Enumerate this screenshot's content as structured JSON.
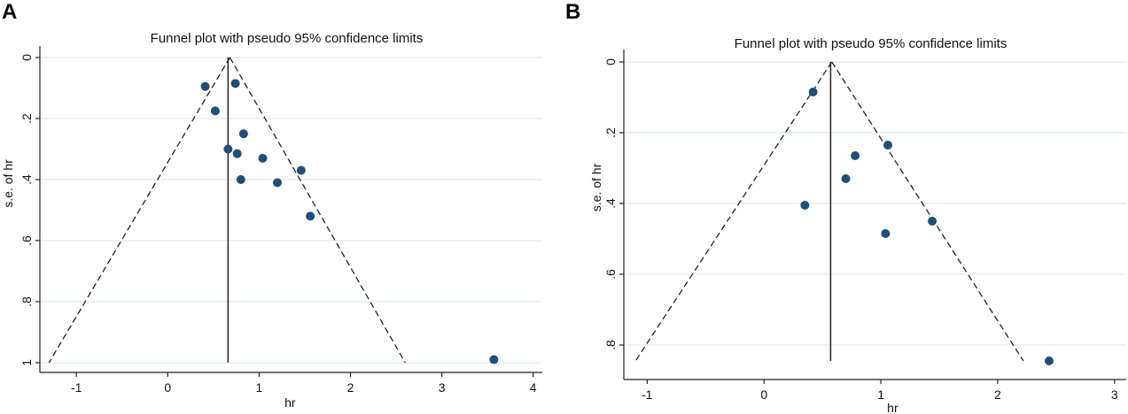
{
  "chart_data": [
    {
      "panel_label": "A",
      "type": "scatter",
      "title": "Funnel plot with pseudo 95% confidence limits",
      "xlabel": "hr",
      "ylabel": "s.e. of hr",
      "xlim": [
        -1.4,
        4.1
      ],
      "ylim": [
        1.0,
        0.0
      ],
      "x_ticks": [
        -1,
        0,
        1,
        2,
        3,
        4
      ],
      "x_tick_labels": [
        "-1",
        "0",
        "1",
        "2",
        "3",
        "4"
      ],
      "y_ticks": [
        0,
        0.2,
        0.4,
        0.6,
        0.8,
        1
      ],
      "y_tick_labels": [
        "0",
        ".2",
        ".4",
        ".6",
        ".8",
        "1"
      ],
      "grid": true,
      "pooled_estimate": 0.66,
      "funnel_apex": {
        "x": 0.68,
        "y": 0.0
      },
      "funnel_base": {
        "left_x": -1.3,
        "right_x": 2.6,
        "y": 1.0
      },
      "vertical_line_range": [
        0.0,
        1.0
      ],
      "points": [
        {
          "x": 0.41,
          "y": 0.095
        },
        {
          "x": 0.74,
          "y": 0.085
        },
        {
          "x": 0.52,
          "y": 0.175
        },
        {
          "x": 0.83,
          "y": 0.25
        },
        {
          "x": 0.66,
          "y": 0.3
        },
        {
          "x": 0.76,
          "y": 0.315
        },
        {
          "x": 1.04,
          "y": 0.33
        },
        {
          "x": 1.46,
          "y": 0.37
        },
        {
          "x": 0.8,
          "y": 0.4
        },
        {
          "x": 1.2,
          "y": 0.41
        },
        {
          "x": 1.56,
          "y": 0.52
        },
        {
          "x": 3.57,
          "y": 0.99
        }
      ],
      "colors": {
        "points": "#1f4e79",
        "lines": "#222222",
        "grid": "#d9e6ee"
      }
    },
    {
      "panel_label": "B",
      "type": "scatter",
      "title": "Funnel plot with pseudo 95% confidence limits",
      "xlabel": "hr",
      "ylabel": "s.e. of hr",
      "xlim": [
        -1.2,
        3.1
      ],
      "ylim": [
        0.86,
        0.0
      ],
      "x_ticks": [
        -1,
        0,
        1,
        2,
        3
      ],
      "x_tick_labels": [
        "-1",
        "0",
        "1",
        "2",
        "3"
      ],
      "y_ticks": [
        0,
        0.2,
        0.4,
        0.6,
        0.8
      ],
      "y_tick_labels": [
        "0",
        ".2",
        ".4",
        ".6",
        ".8"
      ],
      "grid": true,
      "pooled_estimate": 0.57,
      "funnel_apex": {
        "x": 0.58,
        "y": 0.0
      },
      "funnel_base": {
        "left_x": -1.1,
        "right_x": 2.22,
        "y": 0.845
      },
      "vertical_line_range": [
        0.0,
        0.845
      ],
      "points": [
        {
          "x": 0.42,
          "y": 0.085
        },
        {
          "x": 1.06,
          "y": 0.235
        },
        {
          "x": 0.78,
          "y": 0.265
        },
        {
          "x": 0.7,
          "y": 0.33
        },
        {
          "x": 0.35,
          "y": 0.405
        },
        {
          "x": 1.44,
          "y": 0.45
        },
        {
          "x": 1.04,
          "y": 0.485
        },
        {
          "x": 2.44,
          "y": 0.845
        }
      ],
      "colors": {
        "points": "#1f4e79",
        "lines": "#222222",
        "grid": "#d9e6ee"
      }
    }
  ]
}
